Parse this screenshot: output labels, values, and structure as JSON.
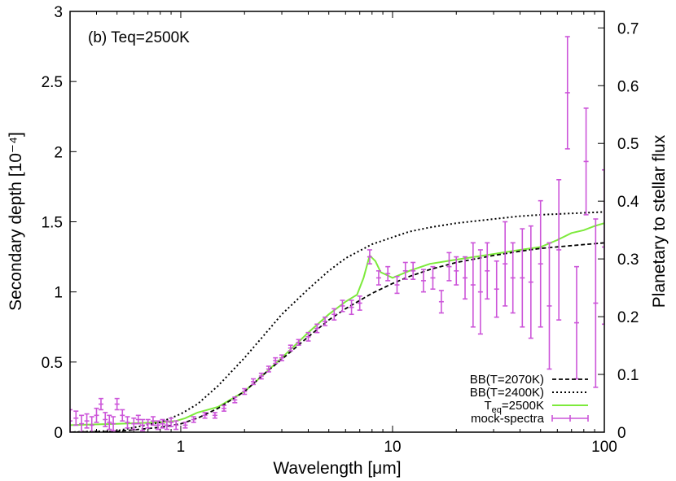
{
  "chart_data": {
    "type": "line",
    "panel_label": "(b) Teq=2500K",
    "xlabel": "Wavelength [μm]",
    "ylabel": "Secondary depth [10⁻⁴]",
    "y2label": "Planetary to stellar flux",
    "xscale": "log",
    "xlim": [
      0.3,
      100
    ],
    "ylim": [
      0,
      3
    ],
    "y2lim": [
      0,
      0.7286
    ],
    "xticks": [
      1,
      10,
      100
    ],
    "xtick_labels": [
      "1",
      "10",
      "100"
    ],
    "yticks": [
      0,
      0.5,
      1,
      1.5,
      2,
      2.5,
      3
    ],
    "ytick_labels": [
      "0",
      "0.5",
      "1",
      "1.5",
      "2",
      "2.5",
      "3"
    ],
    "y2ticks": [
      0,
      0.1,
      0.2,
      0.3,
      0.4,
      0.5,
      0.6,
      0.7
    ],
    "y2tick_labels": [
      "0",
      "0.1",
      "0.2",
      "0.3",
      "0.4",
      "0.5",
      "0.6",
      "0.7"
    ],
    "legend_position": "bottom-right",
    "colors": {
      "model": "#7dea3c",
      "mock": "#cc55d9",
      "bb": "#000000"
    },
    "series": [
      {
        "name": "BB(T=2070K)",
        "style": "dashed",
        "x": [
          0.3,
          0.5,
          0.8,
          1.0,
          1.2,
          1.5,
          2.0,
          2.5,
          3.0,
          4.0,
          5.0,
          6.0,
          8.0,
          10,
          12,
          15,
          20,
          30,
          40,
          50,
          70,
          100
        ],
        "y": [
          0.0,
          0.005,
          0.035,
          0.06,
          0.1,
          0.17,
          0.29,
          0.42,
          0.52,
          0.68,
          0.8,
          0.88,
          0.99,
          1.06,
          1.11,
          1.16,
          1.21,
          1.26,
          1.29,
          1.31,
          1.33,
          1.35
        ]
      },
      {
        "name": "BB(T=2400K)",
        "style": "dotted",
        "x": [
          0.3,
          0.5,
          0.8,
          1.0,
          1.2,
          1.5,
          2.0,
          2.5,
          3.0,
          4.0,
          5.0,
          6.0,
          8.0,
          10,
          12,
          15,
          20,
          30,
          40,
          50,
          70,
          100
        ],
        "y": [
          0.0,
          0.01,
          0.07,
          0.13,
          0.2,
          0.33,
          0.53,
          0.7,
          0.84,
          1.02,
          1.15,
          1.24,
          1.34,
          1.39,
          1.43,
          1.46,
          1.49,
          1.52,
          1.54,
          1.55,
          1.56,
          1.57
        ]
      },
      {
        "name": "T_eq=2500K",
        "style": "solid",
        "x": [
          0.3,
          0.5,
          0.8,
          0.95,
          1.05,
          1.2,
          1.5,
          2.0,
          2.5,
          3.0,
          4.0,
          5.0,
          6.0,
          6.8,
          7.3,
          7.8,
          8.3,
          8.8,
          9.4,
          10,
          12,
          15,
          20,
          30,
          40,
          50,
          60,
          70,
          80,
          90,
          100
        ],
        "y": [
          0.05,
          0.06,
          0.07,
          0.08,
          0.1,
          0.14,
          0.18,
          0.29,
          0.42,
          0.53,
          0.71,
          0.84,
          0.93,
          0.98,
          1.1,
          1.26,
          1.22,
          1.14,
          1.12,
          1.1,
          1.15,
          1.2,
          1.23,
          1.27,
          1.3,
          1.32,
          1.37,
          1.42,
          1.44,
          1.47,
          1.49
        ]
      }
    ],
    "mock_spectra": {
      "name": "mock-spectra",
      "x": [
        0.3,
        0.32,
        0.34,
        0.36,
        0.38,
        0.4,
        0.42,
        0.44,
        0.46,
        0.48,
        0.5,
        0.53,
        0.56,
        0.6,
        0.63,
        0.66,
        0.7,
        0.74,
        0.78,
        0.82,
        0.86,
        0.9,
        0.95,
        1.05,
        1.15,
        1.3,
        1.45,
        1.6,
        1.8,
        2.0,
        2.2,
        2.4,
        2.6,
        2.8,
        3.0,
        3.3,
        3.6,
        4.0,
        4.4,
        4.8,
        5.3,
        5.8,
        6.4,
        7.0,
        7.8,
        8.6,
        9.5,
        10.5,
        11.5,
        12.5,
        14,
        15.5,
        17,
        18.5,
        20,
        22,
        24,
        26,
        28,
        31,
        34,
        37,
        41,
        45,
        50,
        55,
        61,
        67,
        74,
        82,
        91,
        100
      ],
      "y": [
        0.08,
        0.1,
        0.06,
        0.08,
        0.05,
        0.12,
        0.2,
        0.09,
        0.07,
        0.06,
        0.2,
        0.12,
        0.07,
        0.06,
        0.09,
        0.05,
        0.06,
        0.08,
        0.05,
        0.06,
        0.05,
        0.07,
        0.05,
        0.05,
        0.09,
        0.12,
        0.12,
        0.17,
        0.23,
        0.29,
        0.36,
        0.4,
        0.45,
        0.51,
        0.53,
        0.6,
        0.64,
        0.68,
        0.74,
        0.79,
        0.84,
        0.9,
        0.89,
        0.92,
        1.25,
        1.1,
        1.13,
        1.05,
        1.15,
        1.15,
        1.08,
        1.1,
        0.93,
        1.18,
        1.15,
        1.1,
        1.05,
        1.0,
        1.15,
        1.02,
        1.2,
        1.1,
        1.1,
        1.07,
        1.2,
        0.9,
        1.3,
        2.42,
        0.78,
        1.93,
        0.92,
        1.32
      ],
      "err": [
        0.08,
        0.05,
        0.06,
        0.05,
        0.06,
        0.05,
        0.04,
        0.05,
        0.05,
        0.05,
        0.04,
        0.04,
        0.04,
        0.04,
        0.03,
        0.04,
        0.03,
        0.03,
        0.03,
        0.03,
        0.03,
        0.03,
        0.03,
        0.02,
        0.02,
        0.02,
        0.02,
        0.02,
        0.02,
        0.02,
        0.02,
        0.02,
        0.02,
        0.02,
        0.02,
        0.02,
        0.02,
        0.03,
        0.03,
        0.03,
        0.04,
        0.04,
        0.05,
        0.05,
        0.05,
        0.05,
        0.05,
        0.06,
        0.06,
        0.06,
        0.08,
        0.08,
        0.08,
        0.1,
        0.1,
        0.15,
        0.3,
        0.3,
        0.2,
        0.2,
        0.3,
        0.25,
        0.35,
        0.4,
        0.45,
        0.45,
        0.5,
        0.4,
        0.4,
        0.38,
        0.6,
        0.55
      ]
    }
  }
}
